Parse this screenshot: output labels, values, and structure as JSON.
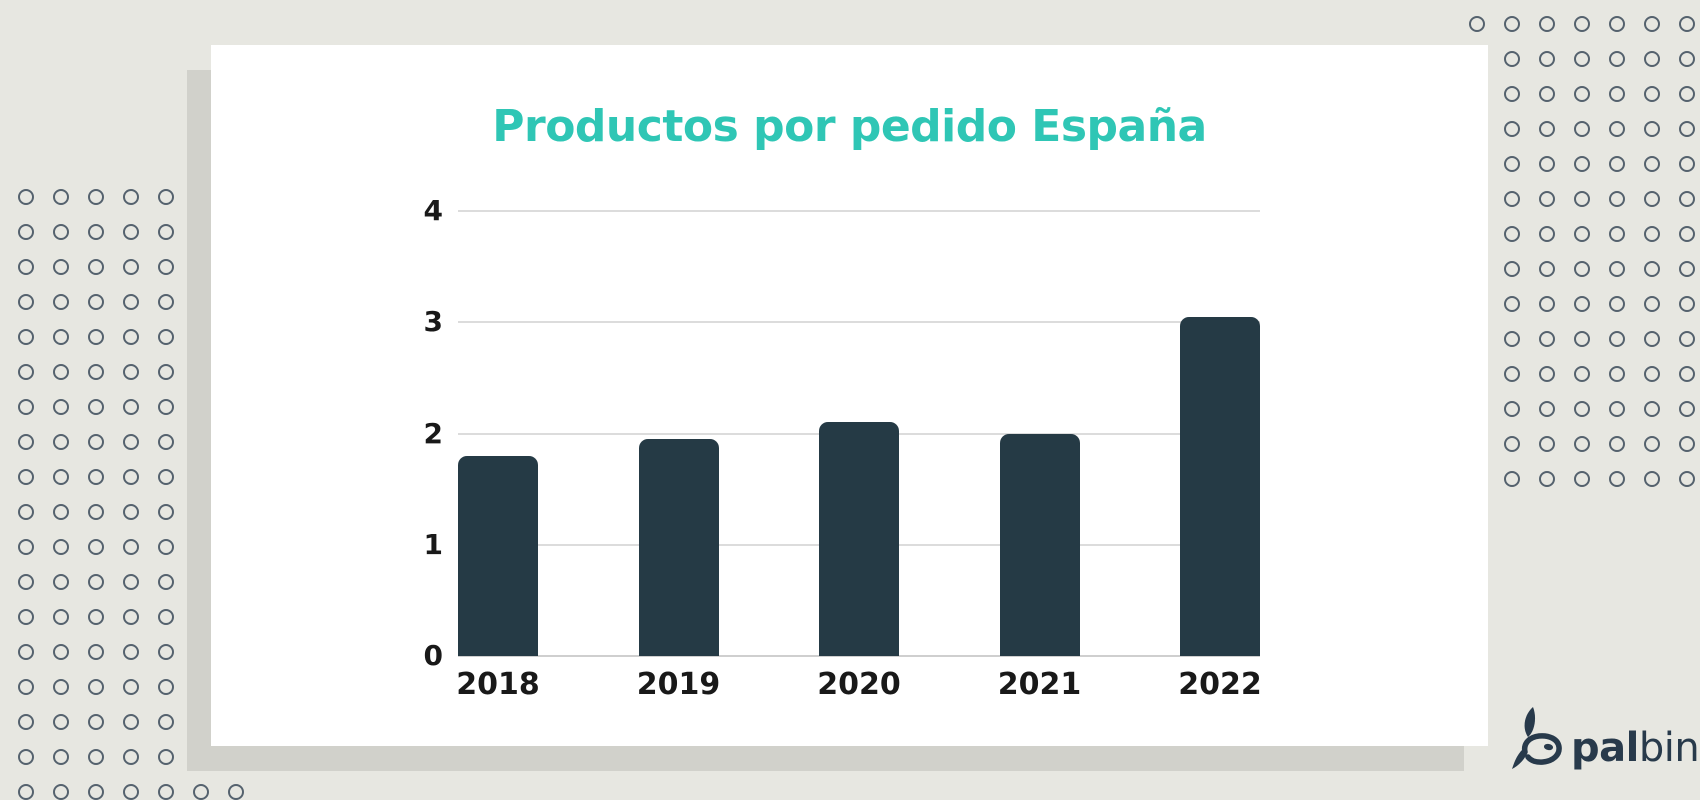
{
  "window": {
    "background": "#e7e7e1",
    "shadow_color": "#d1d1cb"
  },
  "decor": {
    "dot_color": "#55626e"
  },
  "chart_data": {
    "type": "bar",
    "title": "Productos por pedido España",
    "categories": [
      "2018",
      "2019",
      "2020",
      "2021",
      "2022"
    ],
    "values": [
      1.8,
      1.95,
      2.1,
      2.0,
      3.05
    ],
    "ylim": [
      0,
      4
    ],
    "yticks": [
      0,
      1,
      2,
      3,
      4
    ],
    "grid": true,
    "legend": false,
    "xlabel": "",
    "ylabel": "",
    "colors": {
      "bar": "#253a45",
      "title": "#2fc6b5",
      "gridline": "#dcdcdc",
      "baseline": "#cfcfcf",
      "axis_text": "#191919"
    }
  },
  "logo": {
    "text_bold": "pal",
    "text_light": "bin",
    "color": "#283a4b"
  }
}
